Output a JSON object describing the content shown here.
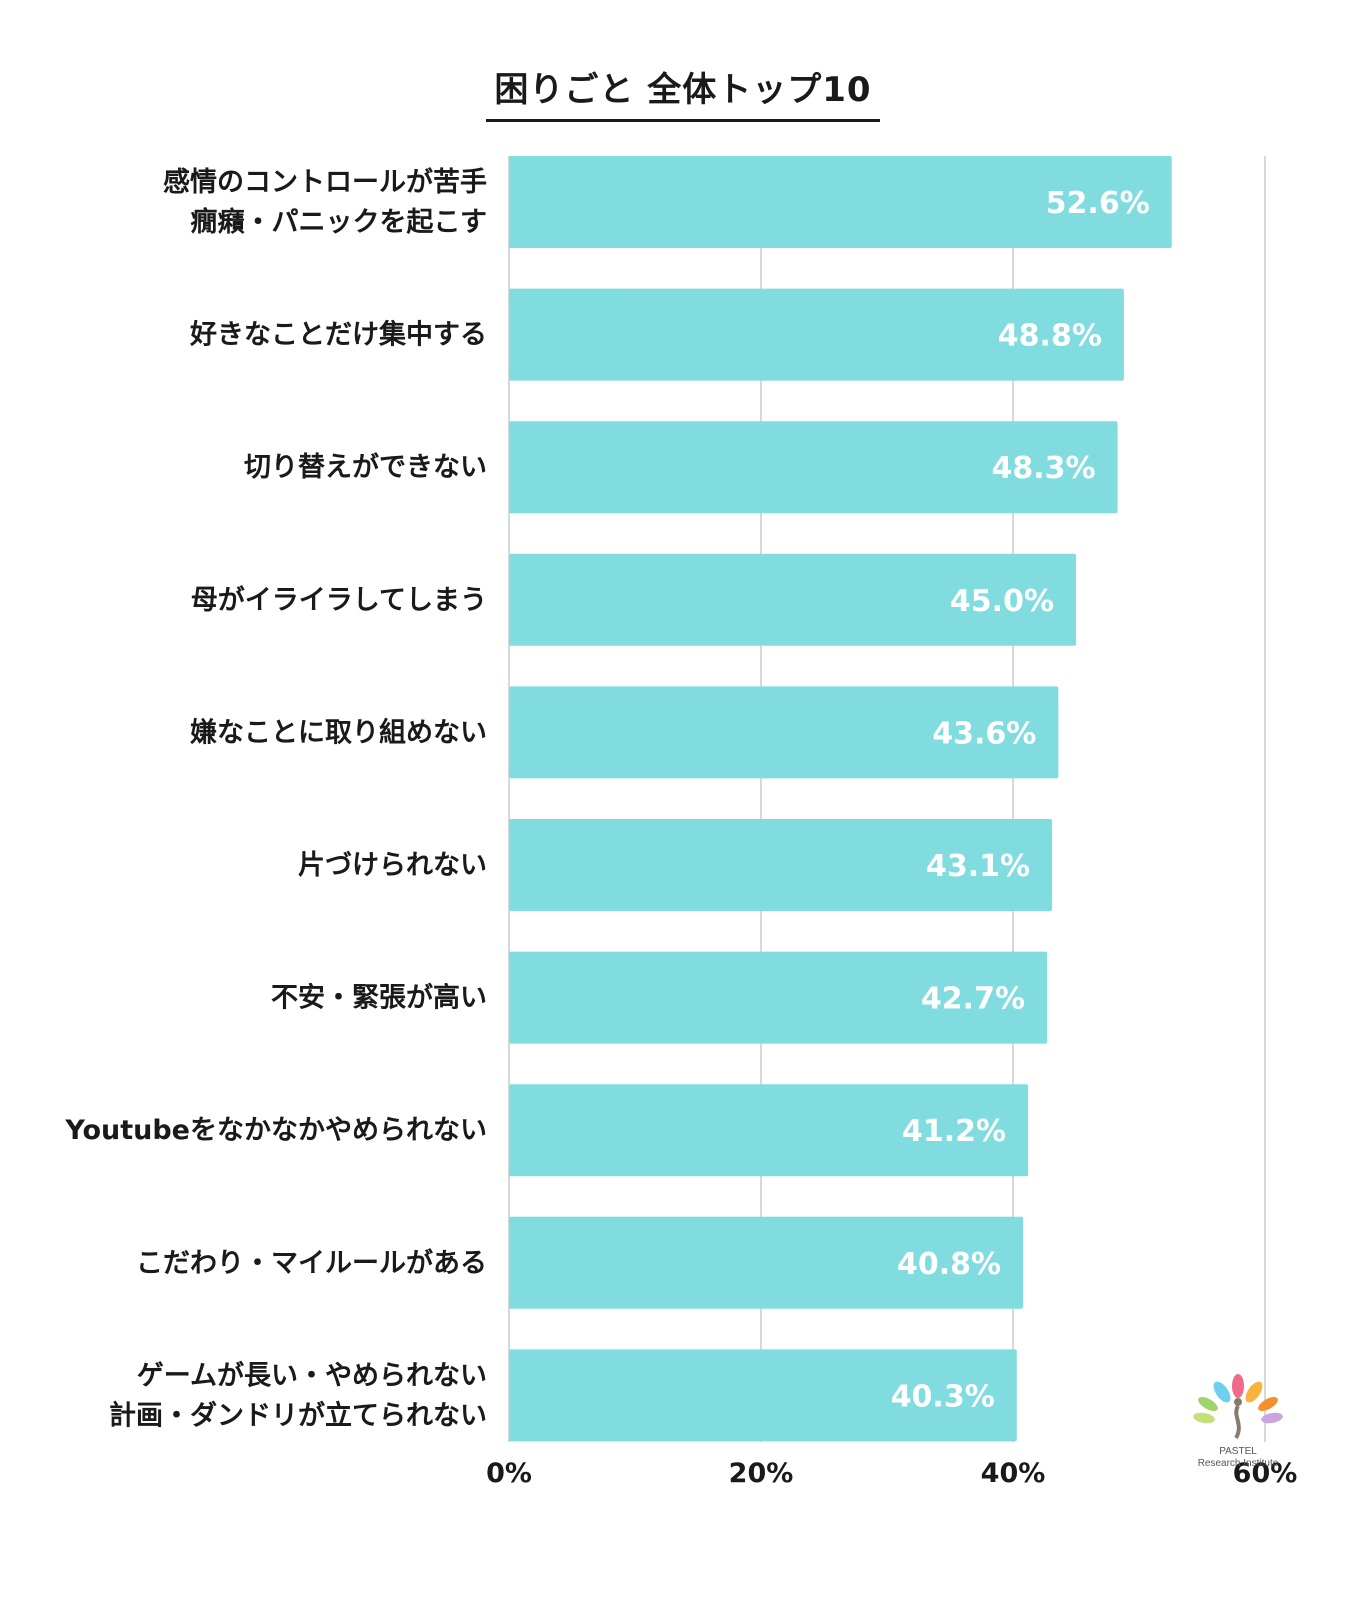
{
  "chart_data": {
    "type": "bar",
    "orientation": "horizontal",
    "title": "困りごと 全体トップ10",
    "categories": [
      [
        "感情のコントロールが苦手",
        "癇癪・パニックを起こす"
      ],
      [
        "好きなことだけ集中する"
      ],
      [
        "切り替えができない"
      ],
      [
        "母がイライラしてしまう"
      ],
      [
        "嫌なことに取り組めない"
      ],
      [
        "片づけられない"
      ],
      [
        "不安・緊張が高い"
      ],
      [
        "Youtubeをなかなかやめられない"
      ],
      [
        "こだわり・マイルールがある"
      ],
      [
        "ゲームが長い・やめられない",
        "計画・ダンドリが立てられない"
      ]
    ],
    "values": [
      52.6,
      48.8,
      48.3,
      45.0,
      43.6,
      43.1,
      42.7,
      41.2,
      40.8,
      40.3
    ],
    "value_labels": [
      "52.6%",
      "48.8%",
      "48.3%",
      "45.0%",
      "43.6%",
      "43.1%",
      "42.7%",
      "41.2%",
      "40.8%",
      "40.3%"
    ],
    "xlim": [
      0,
      60
    ],
    "xticks": [
      0,
      20,
      40,
      60
    ],
    "xtick_labels": [
      "0%",
      "20%",
      "40%",
      "60%"
    ],
    "grid": true,
    "bar_color": "#80dcdf"
  },
  "logo": {
    "line1": "PASTEL",
    "line2": "Research Institute"
  }
}
